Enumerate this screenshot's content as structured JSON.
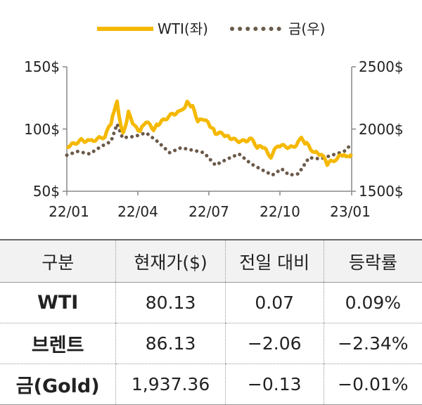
{
  "chart_data": {
    "type": "line",
    "legend": {
      "placement": "top",
      "items": [
        {
          "label": "WTI(좌)",
          "color": "#f5b800",
          "style": "solid"
        },
        {
          "label": "금(우)",
          "color": "#6b5a4a",
          "style": "dotted"
        }
      ]
    },
    "x_ticks": [
      "22/01",
      "22/04",
      "22/07",
      "22/10",
      "23/01"
    ],
    "y_left": {
      "min": 50,
      "max": 150,
      "ticks": [
        "50$",
        "100$",
        "150$"
      ],
      "tick_values": [
        50,
        100,
        150
      ]
    },
    "y_right": {
      "min": 1500,
      "max": 2500,
      "ticks": [
        "1500$",
        "2000$",
        "2500$"
      ],
      "tick_values": [
        1500,
        2000,
        2500
      ]
    },
    "series": [
      {
        "name": "WTI(좌)",
        "axis": "left",
        "color": "#f5b800",
        "points": [
          [
            "2022-01-01",
            86
          ],
          [
            "2022-01-10",
            88
          ],
          [
            "2022-01-20",
            91
          ],
          [
            "2022-01-31",
            90
          ],
          [
            "2022-02-10",
            92
          ],
          [
            "2022-02-20",
            94
          ],
          [
            "2022-02-28",
            105
          ],
          [
            "2022-03-04",
            115
          ],
          [
            "2022-03-08",
            123
          ],
          [
            "2022-03-11",
            109
          ],
          [
            "2022-03-16",
            96
          ],
          [
            "2022-03-23",
            113
          ],
          [
            "2022-03-31",
            102
          ],
          [
            "2022-04-07",
            98
          ],
          [
            "2022-04-15",
            106
          ],
          [
            "2022-04-25",
            100
          ],
          [
            "2022-05-01",
            104
          ],
          [
            "2022-05-10",
            108
          ],
          [
            "2022-05-20",
            112
          ],
          [
            "2022-05-31",
            114
          ],
          [
            "2022-06-08",
            121
          ],
          [
            "2022-06-15",
            118
          ],
          [
            "2022-06-22",
            106
          ],
          [
            "2022-06-30",
            108
          ],
          [
            "2022-07-08",
            103
          ],
          [
            "2022-07-15",
            97
          ],
          [
            "2022-07-25",
            96
          ],
          [
            "2022-08-01",
            94
          ],
          [
            "2022-08-10",
            91
          ],
          [
            "2022-08-20",
            90
          ],
          [
            "2022-08-31",
            92
          ],
          [
            "2022-09-08",
            85
          ],
          [
            "2022-09-15",
            86
          ],
          [
            "2022-09-26",
            78
          ],
          [
            "2022-10-05",
            87
          ],
          [
            "2022-10-15",
            86
          ],
          [
            "2022-10-25",
            85
          ],
          [
            "2022-11-05",
            92
          ],
          [
            "2022-11-12",
            88
          ],
          [
            "2022-11-22",
            81
          ],
          [
            "2022-12-01",
            80
          ],
          [
            "2022-12-09",
            72
          ],
          [
            "2022-12-20",
            76
          ],
          [
            "2022-12-31",
            80
          ],
          [
            "2023-01-05",
            78
          ],
          [
            "2023-01-10",
            80
          ]
        ]
      },
      {
        "name": "금(우)",
        "axis": "right",
        "color": "#6b5a4a",
        "points": [
          [
            "2022-01-01",
            1790
          ],
          [
            "2022-01-15",
            1820
          ],
          [
            "2022-01-31",
            1800
          ],
          [
            "2022-02-15",
            1860
          ],
          [
            "2022-02-28",
            1900
          ],
          [
            "2022-03-08",
            2040
          ],
          [
            "2022-03-15",
            1930
          ],
          [
            "2022-03-31",
            1940
          ],
          [
            "2022-04-15",
            1970
          ],
          [
            "2022-04-30",
            1900
          ],
          [
            "2022-05-16",
            1810
          ],
          [
            "2022-05-31",
            1850
          ],
          [
            "2022-06-15",
            1830
          ],
          [
            "2022-06-30",
            1810
          ],
          [
            "2022-07-15",
            1710
          ],
          [
            "2022-07-31",
            1760
          ],
          [
            "2022-08-15",
            1800
          ],
          [
            "2022-08-31",
            1720
          ],
          [
            "2022-09-15",
            1670
          ],
          [
            "2022-09-28",
            1630
          ],
          [
            "2022-10-10",
            1680
          ],
          [
            "2022-10-20",
            1630
          ],
          [
            "2022-11-01",
            1640
          ],
          [
            "2022-11-15",
            1770
          ],
          [
            "2022-11-30",
            1760
          ],
          [
            "2022-12-15",
            1790
          ],
          [
            "2022-12-31",
            1820
          ],
          [
            "2023-01-05",
            1850
          ],
          [
            "2023-01-10",
            1880
          ]
        ]
      }
    ],
    "x_range": [
      "2022-01-01",
      "2023-01-10"
    ],
    "grid": false
  },
  "table": {
    "headers": [
      "구분",
      "현재가($)",
      "전일 대비",
      "등락률"
    ],
    "rows": [
      {
        "name": "WTI",
        "price": "80.13",
        "change": "0.07",
        "rate": "0.09%"
      },
      {
        "name": "브렌트",
        "price": "86.13",
        "change": "−2.06",
        "rate": "−2.34%"
      },
      {
        "name": "금(Gold)",
        "price": "1,937.36",
        "change": "−0.13",
        "rate": "−0.01%"
      }
    ]
  }
}
